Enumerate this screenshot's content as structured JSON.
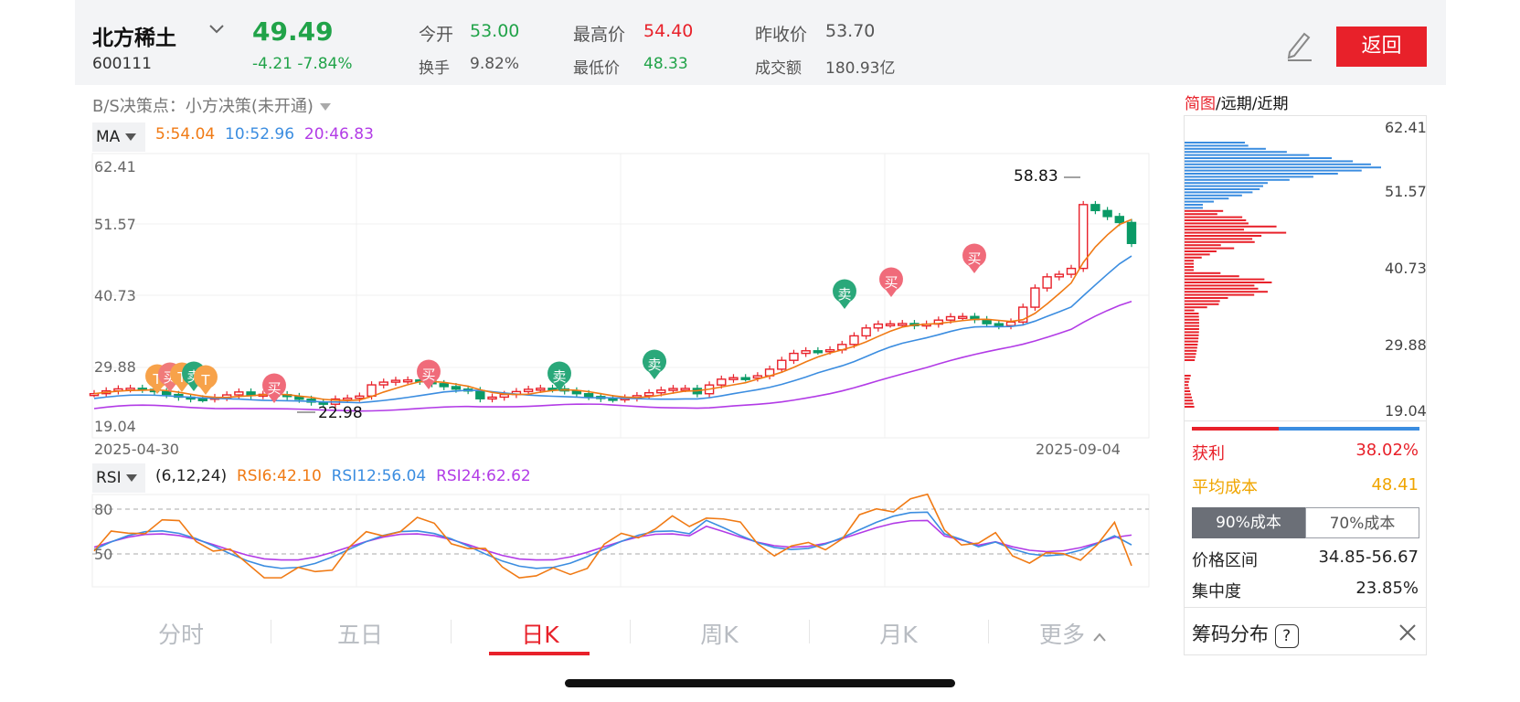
{
  "stock": {
    "name": "北方稀土",
    "code": "600111",
    "price": "49.49",
    "change": "-4.21 -7.84%",
    "quote": [
      {
        "label": "今开",
        "value": "53.00",
        "color": "#21a349"
      },
      {
        "label": "最高价",
        "value": "54.40",
        "color": "#e8212a"
      },
      {
        "label": "昨收价",
        "value": "53.70",
        "color": "#555555"
      },
      {
        "label": "换手",
        "value": "9.82%",
        "color": "#555555"
      },
      {
        "label": "最低价",
        "value": "48.33",
        "color": "#21a349"
      },
      {
        "label": "成交额",
        "value": "180.93亿",
        "color": "#555555"
      }
    ],
    "back_label": "返回"
  },
  "bs": {
    "label": "B/S决策点：",
    "value": "小方决策(未开通)"
  },
  "ma": {
    "label": "MA",
    "items": [
      {
        "text": "5:54.04",
        "color": "#f07a14"
      },
      {
        "text": "10:52.96",
        "color": "#3b8de0"
      },
      {
        "text": "20:46.83",
        "color": "#b23be6"
      }
    ]
  },
  "kline": {
    "yticks": [
      "62.41",
      "51.57",
      "40.73",
      "29.88",
      "19.04"
    ],
    "start_date": "2025-04-30",
    "end_date": "2025-09-04",
    "high_label": "58.83",
    "low_label": "22.98",
    "signals": [
      "买",
      "卖",
      "T"
    ]
  },
  "rsi": {
    "label": "RSI",
    "params": "(6,12,24)",
    "items": [
      {
        "text": "RSI6:42.10",
        "color": "#f07a14"
      },
      {
        "text": "RSI12:56.04",
        "color": "#3b8de0"
      },
      {
        "text": "RSI24:62.62",
        "color": "#b23be6"
      }
    ],
    "levels": [
      "80",
      "50"
    ]
  },
  "period_tabs": [
    "分时",
    "五日",
    "日K",
    "周K",
    "月K",
    "更多"
  ],
  "active_tab": "日K",
  "chip": {
    "header_active": "简图",
    "header_rest": "/远期/近期",
    "price_ticks": [
      "62.41",
      "51.57",
      "40.73",
      "29.88",
      "19.04"
    ],
    "profit_label": "获利",
    "profit_value": "38.02%",
    "avg_cost_label": "平均成本",
    "avg_cost_value": "48.41",
    "seg_active": "90%成本",
    "seg_other": "70%成本",
    "range_label": "价格区间",
    "range_value": "34.85-56.67",
    "conc_label": "集中度",
    "conc_value": "23.85%",
    "title": "筹码分布",
    "help": "?",
    "profit_ratio": 0.3802
  },
  "colors": {
    "up": "#e8212a",
    "down": "#0a9a66",
    "ma5": "#f07a14",
    "ma10": "#3b8de0",
    "ma20": "#b23be6"
  }
}
